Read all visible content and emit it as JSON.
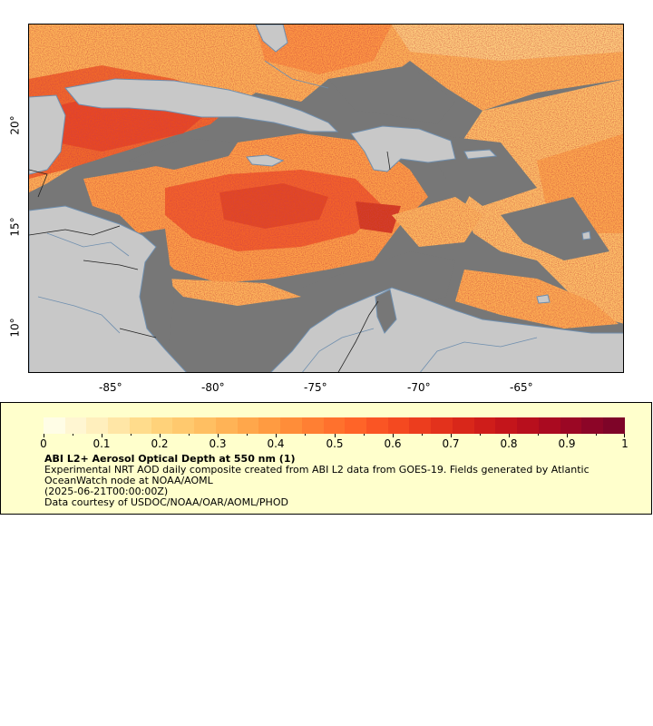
{
  "map": {
    "region": "Caribbean Sea",
    "colors": {
      "land": "#c8c8c8",
      "no_data": "#777777",
      "coast": "#6f8faf",
      "borders": "#222222"
    },
    "lon_ticks": [
      "-85°",
      "-80°",
      "-75°",
      "-70°",
      "-65°"
    ],
    "lat_ticks": [
      "20°",
      "15°",
      "10°"
    ]
  },
  "colorbar": {
    "tick_labels": [
      "0",
      "0.1",
      "0.2",
      "0.3",
      "0.4",
      "0.5",
      "0.6",
      "0.7",
      "0.8",
      "0.9",
      "1"
    ],
    "colors": [
      "#fffde6",
      "#fff6d2",
      "#ffefbd",
      "#ffe6a6",
      "#ffdc8c",
      "#ffd27a",
      "#ffc96e",
      "#ffbf62",
      "#ffb356",
      "#ffa74b",
      "#ff9b41",
      "#ff8d39",
      "#ff7f33",
      "#ff712d",
      "#ff6428",
      "#fa5524",
      "#f44920",
      "#ec3d1e",
      "#e3321c",
      "#d9271a",
      "#cf1d1a",
      "#c4151b",
      "#b80f1d",
      "#aa0a20",
      "#9b0724",
      "#8c0527",
      "#7e0428"
    ]
  },
  "legend": {
    "title": "ABI L2+ Aerosol Optical Depth at 550 nm (1)",
    "line1": "Experimental NRT AOD daily composite created from ABI L2 data from GOES-19. Fields generated by Atlantic OceanWatch node at NOAA/AOML",
    "line2": "(2025-06-21T00:00:00Z)",
    "line3": "Data courtesy of USDOC/NOAA/OAR/AOML/PHOD"
  }
}
